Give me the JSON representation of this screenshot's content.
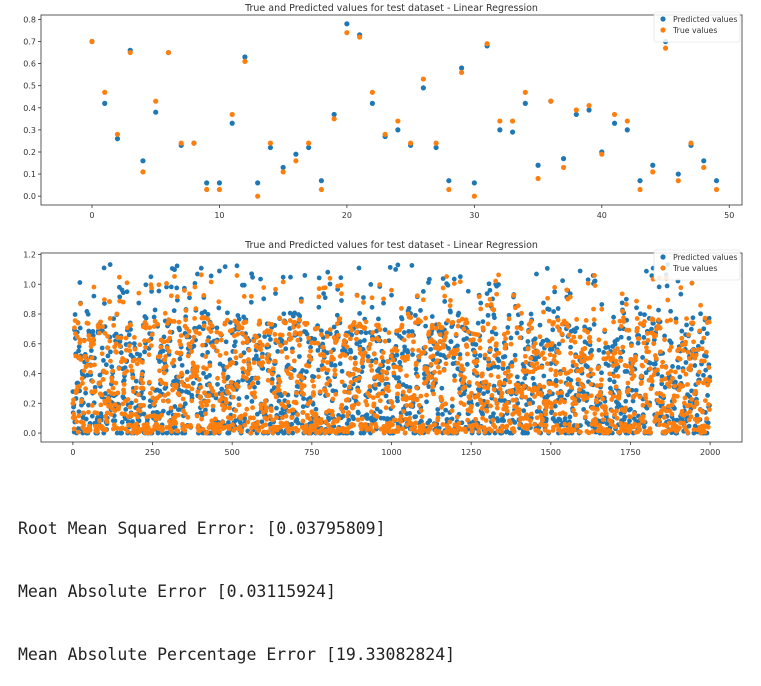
{
  "colors": {
    "predicted": "#1f77b4",
    "true": "#ff7f0e"
  },
  "chart_data": [
    {
      "type": "scatter",
      "title": "True and Predicted values for test dataset - Linear Regression",
      "xlim": [
        -4,
        51
      ],
      "ylim": [
        -0.04,
        0.82
      ],
      "xticks": [
        "0",
        "10",
        "20",
        "30",
        "40",
        "50"
      ],
      "yticks": [
        "0.0",
        "0.1",
        "0.2",
        "0.3",
        "0.4",
        "0.5",
        "0.6",
        "0.7",
        "0.8"
      ],
      "legend": "top-right",
      "series": [
        {
          "name": "Predicted values",
          "color": "#1f77b4",
          "x": [
            0,
            1,
            2,
            3,
            4,
            5,
            6,
            7,
            8,
            9,
            10,
            11,
            12,
            13,
            14,
            15,
            16,
            17,
            18,
            19,
            20,
            21,
            22,
            23,
            24,
            25,
            26,
            27,
            28,
            29,
            30,
            31,
            32,
            33,
            34,
            35,
            36,
            37,
            38,
            39,
            40,
            41,
            42,
            43,
            44,
            45,
            46,
            47,
            48,
            49
          ],
          "y": [
            0.7,
            0.42,
            0.26,
            0.66,
            0.16,
            0.38,
            0.65,
            0.23,
            0.24,
            0.06,
            0.06,
            0.33,
            0.63,
            0.06,
            0.22,
            0.13,
            0.19,
            0.22,
            0.07,
            0.37,
            0.78,
            0.73,
            0.42,
            0.27,
            0.3,
            0.23,
            0.49,
            0.22,
            0.07,
            0.58,
            0.06,
            0.68,
            0.3,
            0.29,
            0.42,
            0.14,
            0.43,
            0.17,
            0.37,
            0.39,
            0.2,
            0.33,
            0.3,
            0.07,
            0.14,
            0.7,
            0.1,
            0.23,
            0.16,
            0.07
          ]
        },
        {
          "name": "True values",
          "color": "#ff7f0e",
          "x": [
            0,
            1,
            2,
            3,
            4,
            5,
            6,
            7,
            8,
            9,
            10,
            11,
            12,
            13,
            14,
            15,
            16,
            17,
            18,
            19,
            20,
            21,
            22,
            23,
            24,
            25,
            26,
            27,
            28,
            29,
            30,
            31,
            32,
            33,
            34,
            35,
            36,
            37,
            38,
            39,
            40,
            41,
            42,
            43,
            44,
            45,
            46,
            47,
            48,
            49
          ],
          "y": [
            0.7,
            0.47,
            0.28,
            0.65,
            0.11,
            0.43,
            0.65,
            0.24,
            0.24,
            0.03,
            0.03,
            0.37,
            0.61,
            0.0,
            0.24,
            0.11,
            0.16,
            0.24,
            0.03,
            0.35,
            0.74,
            0.72,
            0.47,
            0.28,
            0.34,
            0.24,
            0.53,
            0.24,
            0.03,
            0.56,
            0.0,
            0.69,
            0.34,
            0.34,
            0.47,
            0.08,
            0.43,
            0.13,
            0.39,
            0.41,
            0.19,
            0.37,
            0.34,
            0.03,
            0.11,
            0.67,
            0.07,
            0.24,
            0.13,
            0.03
          ]
        }
      ]
    },
    {
      "type": "scatter",
      "title": "True and Predicted values for test dataset - Linear Regression",
      "xlim": [
        -100,
        2100
      ],
      "ylim": [
        -0.06,
        1.21
      ],
      "xticks": [
        "0",
        "250",
        "500",
        "750",
        "1000",
        "1250",
        "1500",
        "1750",
        "2000"
      ],
      "yticks": [
        "0.0",
        "0.2",
        "0.4",
        "0.6",
        "0.8",
        "1.0",
        "1.2"
      ],
      "legend": "top-right",
      "n_points": 2000,
      "series": [
        {
          "name": "Predicted values",
          "color": "#1f77b4",
          "y_range": [
            0.0,
            1.14
          ]
        },
        {
          "name": "True values",
          "color": "#ff7f0e",
          "y_range": [
            0.0,
            1.09
          ]
        }
      ]
    }
  ],
  "metrics": {
    "rmse": "Root Mean Squared Error: [0.03795809]",
    "mae": "Mean Absolute Error [0.03115924]",
    "mape": "Mean Absolute Percentage Error [19.33082824]"
  }
}
